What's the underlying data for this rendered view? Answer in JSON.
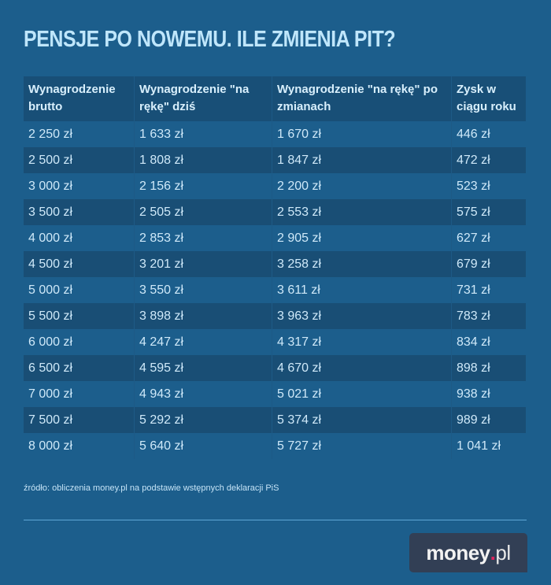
{
  "title": "PENSJE PO NOWEMU. ILE ZMIENIA PIT?",
  "table": {
    "headers": [
      "Wynagrodzenie brutto",
      "Wynagrodzenie \"na rękę\" dziś",
      "Wynagrodzenie \"na rękę\" po zmianach",
      "Zysk w ciągu roku"
    ],
    "rows": [
      [
        "2 250 zł",
        "1 633 zł",
        "1 670 zł",
        "446 zł"
      ],
      [
        "2 500 zł",
        "1 808 zł",
        "1 847 zł",
        "472 zł"
      ],
      [
        "3 000 zł",
        "2 156 zł",
        "2 200 zł",
        "523 zł"
      ],
      [
        "3 500 zł",
        "2 505 zł",
        "2 553 zł",
        "575 zł"
      ],
      [
        "4 000 zł",
        "2 853 zł",
        "2 905 zł",
        "627 zł"
      ],
      [
        "4 500 zł",
        "3 201 zł",
        "3 258 zł",
        "679 zł"
      ],
      [
        "5 000 zł",
        "3 550 zł",
        "3 611 zł",
        "731 zł"
      ],
      [
        "5 500 zł",
        "3 898 zł",
        "3 963 zł",
        "783 zł"
      ],
      [
        "6 000 zł",
        "4 247 zł",
        "4 317 zł",
        "834 zł"
      ],
      [
        "6 500 zł",
        "4 595 zł",
        "4 670 zł",
        "898 zł"
      ],
      [
        "7 000 zł",
        "4 943 zł",
        "5 021 zł",
        "938 zł"
      ],
      [
        "7 500 zł",
        "5 292 zł",
        "5 374 zł",
        "989 zł"
      ],
      [
        "8 000 zł",
        "5 640 zł",
        "5 727 zł",
        "1 041 zł"
      ]
    ]
  },
  "source": "źródło: obliczenia money.pl na podstawie wstępnych deklaracji PiS",
  "logo": {
    "brand": "money",
    "dot": ".",
    "tld": "pl"
  },
  "colors": {
    "background": "#1c5e8c",
    "header_bg": "#184f77",
    "stripe": "#194e75",
    "title": "#bfe6fb",
    "logo_bg": "#323f55",
    "logo_dot": "#e0245e"
  },
  "chart_data": {
    "type": "table",
    "title": "PENSJE PO NOWEMU. ILE ZMIENIA PIT?",
    "columns": [
      "Wynagrodzenie brutto",
      "Wynagrodzenie \"na rękę\" dziś",
      "Wynagrodzenie \"na rękę\" po zmianach",
      "Zysk w ciągu roku"
    ],
    "categories": [
      2250,
      2500,
      3000,
      3500,
      4000,
      4500,
      5000,
      5500,
      6000,
      6500,
      7000,
      7500,
      8000
    ],
    "series": [
      {
        "name": "Wynagrodzenie \"na rękę\" dziś",
        "values": [
          1633,
          1808,
          2156,
          2505,
          2853,
          3201,
          3550,
          3898,
          4247,
          4595,
          4943,
          5292,
          5640
        ]
      },
      {
        "name": "Wynagrodzenie \"na rękę\" po zmianach",
        "values": [
          1670,
          1847,
          2200,
          2553,
          2905,
          3258,
          3611,
          3963,
          4317,
          4670,
          5021,
          5374,
          5727
        ]
      },
      {
        "name": "Zysk w ciągu roku",
        "values": [
          446,
          472,
          523,
          575,
          627,
          679,
          731,
          783,
          834,
          898,
          938,
          989,
          1041
        ]
      }
    ],
    "unit": "zł",
    "source": "źródło: obliczenia money.pl na podstawie wstępnych deklaracji PiS"
  }
}
